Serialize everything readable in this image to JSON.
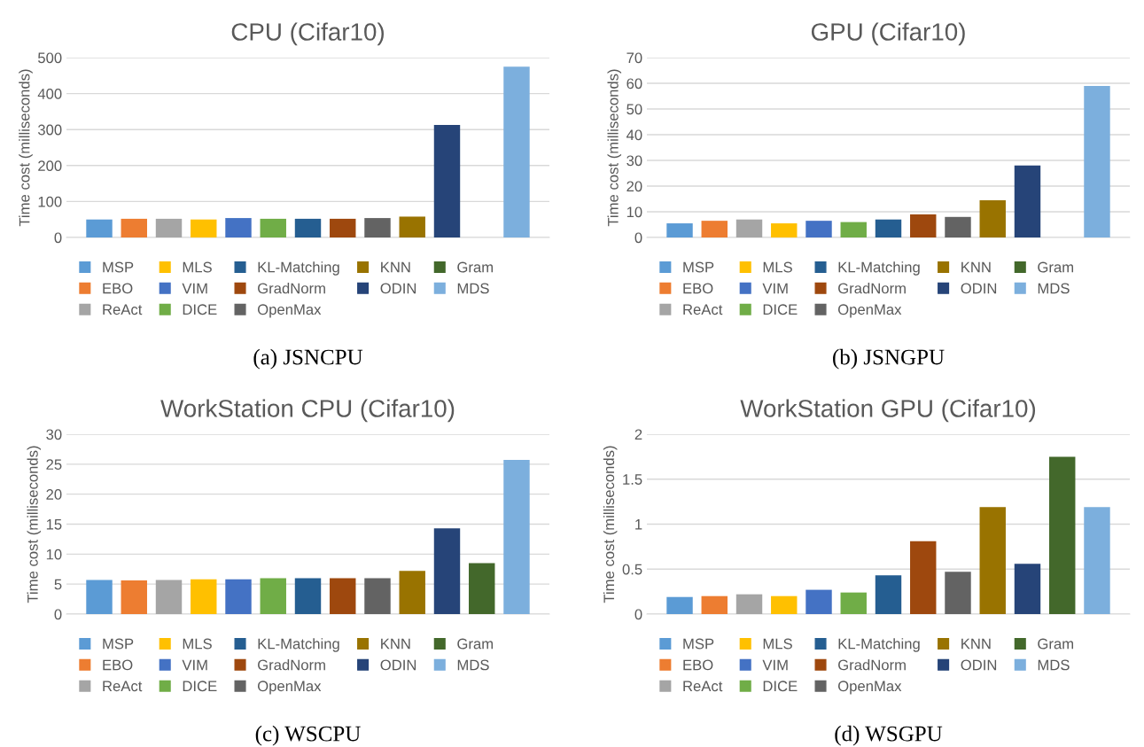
{
  "chart_data": [
    {
      "type": "bar",
      "title": "CPU (Cifar10)",
      "ylabel": "Time cost (milliseconds)",
      "categories": [
        null
      ],
      "ylim": [
        0,
        500
      ],
      "yticks": [
        0,
        100,
        200,
        300,
        400,
        500
      ],
      "grid": "y",
      "legend": "bottom",
      "annotations": [
        "(a) JSNCPU"
      ],
      "series": [
        {
          "name": "MSP",
          "color": "#5b9bd5",
          "values": [
            50
          ]
        },
        {
          "name": "EBO",
          "color": "#ed7d31",
          "values": [
            52
          ]
        },
        {
          "name": "ReAct",
          "color": "#a5a5a5",
          "values": [
            52
          ]
        },
        {
          "name": "MLS",
          "color": "#ffc000",
          "values": [
            50
          ]
        },
        {
          "name": "VIM",
          "color": "#4472c4",
          "values": [
            54
          ]
        },
        {
          "name": "DICE",
          "color": "#70ad47",
          "values": [
            52
          ]
        },
        {
          "name": "KL-Matching",
          "color": "#255e91",
          "values": [
            52
          ]
        },
        {
          "name": "GradNorm",
          "color": "#9e480e",
          "values": [
            52
          ]
        },
        {
          "name": "OpenMax",
          "color": "#636363",
          "values": [
            54
          ]
        },
        {
          "name": "KNN",
          "color": "#997300",
          "values": [
            58
          ]
        },
        {
          "name": "ODIN",
          "color": "#264478",
          "values": [
            313
          ]
        },
        {
          "name": "Gram",
          "color": "#43682b",
          "values": [
            null
          ]
        },
        {
          "name": "MDS",
          "color": "#7cafdd",
          "values": [
            475
          ]
        }
      ]
    },
    {
      "type": "bar",
      "title": "GPU (Cifar10)",
      "ylabel": "Time cost (milliseconds)",
      "categories": [
        null
      ],
      "ylim": [
        0,
        70
      ],
      "yticks": [
        0,
        10,
        20,
        30,
        40,
        50,
        60,
        70
      ],
      "grid": "y",
      "legend": "bottom",
      "annotations": [
        "(b) JSNGPU"
      ],
      "series": [
        {
          "name": "MSP",
          "color": "#5b9bd5",
          "values": [
            5.5
          ]
        },
        {
          "name": "EBO",
          "color": "#ed7d31",
          "values": [
            6.5
          ]
        },
        {
          "name": "ReAct",
          "color": "#a5a5a5",
          "values": [
            7
          ]
        },
        {
          "name": "MLS",
          "color": "#ffc000",
          "values": [
            5.5
          ]
        },
        {
          "name": "VIM",
          "color": "#4472c4",
          "values": [
            6.5
          ]
        },
        {
          "name": "DICE",
          "color": "#70ad47",
          "values": [
            6
          ]
        },
        {
          "name": "KL-Matching",
          "color": "#255e91",
          "values": [
            7
          ]
        },
        {
          "name": "GradNorm",
          "color": "#9e480e",
          "values": [
            9
          ]
        },
        {
          "name": "OpenMax",
          "color": "#636363",
          "values": [
            8
          ]
        },
        {
          "name": "KNN",
          "color": "#997300",
          "values": [
            14.5
          ]
        },
        {
          "name": "ODIN",
          "color": "#264478",
          "values": [
            28
          ]
        },
        {
          "name": "Gram",
          "color": "#43682b",
          "values": [
            null
          ]
        },
        {
          "name": "MDS",
          "color": "#7cafdd",
          "values": [
            59
          ]
        }
      ]
    },
    {
      "type": "bar",
      "title": "WorkStation CPU (Cifar10)",
      "ylabel": "Time cost (milliseconds)",
      "categories": [
        null
      ],
      "ylim": [
        0,
        30
      ],
      "yticks": [
        0,
        5,
        10,
        15,
        20,
        25,
        30
      ],
      "grid": "y",
      "legend": "bottom",
      "annotations": [
        "(c) WSCPU"
      ],
      "series": [
        {
          "name": "MSP",
          "color": "#5b9bd5",
          "values": [
            5.7
          ]
        },
        {
          "name": "EBO",
          "color": "#ed7d31",
          "values": [
            5.6
          ]
        },
        {
          "name": "ReAct",
          "color": "#a5a5a5",
          "values": [
            5.7
          ]
        },
        {
          "name": "MLS",
          "color": "#ffc000",
          "values": [
            5.8
          ]
        },
        {
          "name": "VIM",
          "color": "#4472c4",
          "values": [
            5.8
          ]
        },
        {
          "name": "DICE",
          "color": "#70ad47",
          "values": [
            6.0
          ]
        },
        {
          "name": "KL-Matching",
          "color": "#255e91",
          "values": [
            6.0
          ]
        },
        {
          "name": "GradNorm",
          "color": "#9e480e",
          "values": [
            6.0
          ]
        },
        {
          "name": "OpenMax",
          "color": "#636363",
          "values": [
            6.0
          ]
        },
        {
          "name": "KNN",
          "color": "#997300",
          "values": [
            7.2
          ]
        },
        {
          "name": "ODIN",
          "color": "#264478",
          "values": [
            14.3
          ]
        },
        {
          "name": "Gram",
          "color": "#43682b",
          "values": [
            8.5
          ]
        },
        {
          "name": "MDS",
          "color": "#7cafdd",
          "values": [
            25.7
          ]
        }
      ]
    },
    {
      "type": "bar",
      "title": "WorkStation GPU (Cifar10)",
      "ylabel": "Time cost (milliseconds)",
      "categories": [
        null
      ],
      "ylim": [
        0,
        2
      ],
      "yticks": [
        0,
        0.5,
        1,
        1.5,
        2
      ],
      "grid": "y",
      "legend": "bottom",
      "annotations": [
        "(d) WSGPU"
      ],
      "series": [
        {
          "name": "MSP",
          "color": "#5b9bd5",
          "values": [
            0.19
          ]
        },
        {
          "name": "EBO",
          "color": "#ed7d31",
          "values": [
            0.2
          ]
        },
        {
          "name": "ReAct",
          "color": "#a5a5a5",
          "values": [
            0.22
          ]
        },
        {
          "name": "MLS",
          "color": "#ffc000",
          "values": [
            0.2
          ]
        },
        {
          "name": "VIM",
          "color": "#4472c4",
          "values": [
            0.27
          ]
        },
        {
          "name": "DICE",
          "color": "#70ad47",
          "values": [
            0.24
          ]
        },
        {
          "name": "KL-Matching",
          "color": "#255e91",
          "values": [
            0.43
          ]
        },
        {
          "name": "GradNorm",
          "color": "#9e480e",
          "values": [
            0.81
          ]
        },
        {
          "name": "OpenMax",
          "color": "#636363",
          "values": [
            0.47
          ]
        },
        {
          "name": "KNN",
          "color": "#997300",
          "values": [
            1.19
          ]
        },
        {
          "name": "ODIN",
          "color": "#264478",
          "values": [
            0.56
          ]
        },
        {
          "name": "Gram",
          "color": "#43682b",
          "values": [
            1.75
          ]
        },
        {
          "name": "MDS",
          "color": "#7cafdd",
          "values": [
            1.19
          ]
        }
      ]
    }
  ]
}
